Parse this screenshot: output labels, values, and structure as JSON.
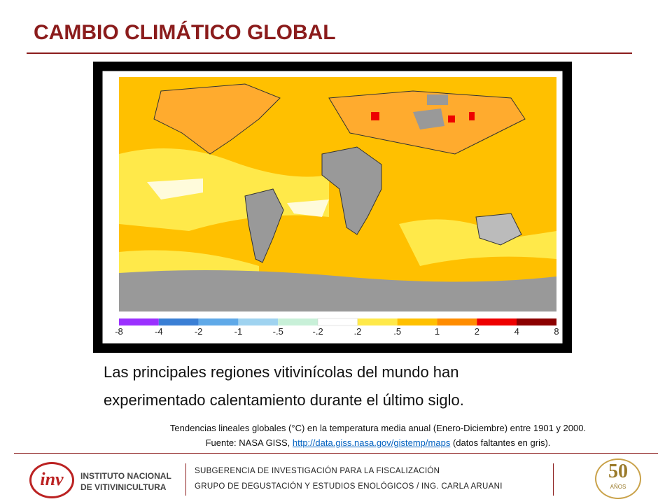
{
  "header": {
    "title": "CAMBIO CLIMÁTICO GLOBAL"
  },
  "map": {
    "legend_labels": [
      "-8",
      "-4",
      "-2",
      "-1",
      "-.5",
      "-.2",
      ".2",
      ".5",
      "1",
      "2",
      "4",
      "8"
    ]
  },
  "body": {
    "lines": [
      "Las principales regiones vitivinícolas del mundo han",
      "experimentado calentamiento durante el último siglo."
    ]
  },
  "caption": {
    "line1": "Tendencias lineales globales (°C) en la temperatura media anual (Enero-Diciembre) entre 1901 y 2000.",
    "source_prefix": "Fuente: NASA GISS, ",
    "link": "http://data.giss.nasa.gov/gistemp/maps",
    "source_suffix": " (datos faltantes en gris)."
  },
  "footer": {
    "logo_mark": "inv",
    "logo_line1": "INSTITUTO NACIONAL",
    "logo_line2": "DE VITIVINICULTURA",
    "line1": "SUBGERENCIA DE INVESTIGACIÓN PARA LA FISCALIZACIÓN",
    "line2": "GRUPO DE DEGUSTACIÓN Y ESTUDIOS ENOLÓGICOS / ING. CARLA ARUANI",
    "anniversary": "50",
    "anniversary_sub": "AÑOS"
  }
}
